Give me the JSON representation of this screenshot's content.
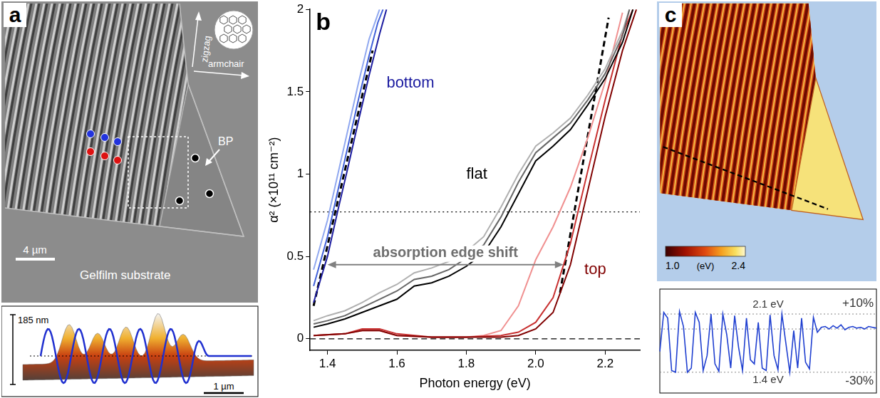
{
  "panel_a": {
    "letter": "a",
    "zigzag_label": "zigzag",
    "armchair_label": "armchair",
    "sample_label": "BP",
    "substrate_label": "Gelfilm substrate",
    "scale_bar": "4 µm",
    "inset": {
      "height_bar": "185 nm",
      "scale_bar": "1 µm"
    }
  },
  "chart_data": [
    {
      "type": "line",
      "letter": "b",
      "x_label": "Photon energy (eV)",
      "y_label": "α² (×10¹¹ cm⁻²)",
      "xlim": [
        1.35,
        2.3
      ],
      "xticks": [
        1.4,
        1.6,
        1.8,
        {
          "value": 2,
          "label": "2.0"
        },
        2.2
      ],
      "ylim": [
        -0.07,
        2
      ],
      "yticks": [
        0,
        0.5,
        1,
        1.5,
        2
      ],
      "grid": false,
      "series": [
        {
          "name": "bottom",
          "color": "#1c1ca0",
          "x": [
            1.36,
            1.38,
            1.4,
            1.43,
            1.46,
            1.49,
            1.52,
            1.55,
            1.57
          ],
          "values": [
            0.22,
            0.36,
            0.5,
            0.78,
            1.05,
            1.33,
            1.6,
            1.85,
            2.0
          ]
        },
        {
          "name": "bottom",
          "color": "#4060d8",
          "x": [
            1.36,
            1.38,
            1.4,
            1.43,
            1.46,
            1.49,
            1.52,
            1.545,
            1.56
          ],
          "values": [
            0.32,
            0.47,
            0.62,
            0.9,
            1.18,
            1.46,
            1.72,
            1.92,
            2.0
          ]
        },
        {
          "name": "bottom",
          "color": "#90a8f0",
          "x": [
            1.36,
            1.38,
            1.4,
            1.43,
            1.46,
            1.49,
            1.52,
            1.55
          ],
          "values": [
            0.42,
            0.57,
            0.72,
            1.0,
            1.28,
            1.56,
            1.82,
            2.0
          ]
        },
        {
          "name": "flat",
          "color": "#000000",
          "x": [
            1.36,
            1.4,
            1.45,
            1.5,
            1.55,
            1.6,
            1.65,
            1.7,
            1.75,
            1.8,
            1.85,
            1.9,
            1.95,
            2.0,
            2.05,
            2.1,
            2.15,
            2.2,
            2.25,
            2.28
          ],
          "values": [
            0.07,
            0.09,
            0.12,
            0.16,
            0.2,
            0.24,
            0.32,
            0.34,
            0.38,
            0.44,
            0.52,
            0.68,
            0.88,
            1.08,
            1.17,
            1.27,
            1.42,
            1.58,
            1.8,
            2.0
          ]
        },
        {
          "name": "flat",
          "color": "#666666",
          "x": [
            1.36,
            1.4,
            1.45,
            1.5,
            1.55,
            1.6,
            1.65,
            1.7,
            1.75,
            1.8,
            1.85,
            1.9,
            1.95,
            2.0,
            2.05,
            2.1,
            2.15,
            2.2,
            2.25,
            2.27
          ],
          "values": [
            0.09,
            0.11,
            0.14,
            0.19,
            0.24,
            0.29,
            0.36,
            0.38,
            0.42,
            0.49,
            0.57,
            0.74,
            0.95,
            1.13,
            1.22,
            1.31,
            1.45,
            1.61,
            1.84,
            2.0
          ]
        },
        {
          "name": "flat",
          "color": "#b0b0b0",
          "x": [
            1.36,
            1.4,
            1.45,
            1.5,
            1.55,
            1.6,
            1.65,
            1.7,
            1.75,
            1.8,
            1.85,
            1.9,
            1.95,
            2.0,
            2.05,
            2.1,
            2.15,
            2.2,
            2.25,
            2.27
          ],
          "values": [
            0.11,
            0.14,
            0.17,
            0.22,
            0.28,
            0.33,
            0.4,
            0.43,
            0.47,
            0.53,
            0.62,
            0.8,
            1.0,
            1.17,
            1.25,
            1.34,
            1.48,
            1.64,
            1.87,
            2.0
          ]
        },
        {
          "name": "top",
          "color": "#800000",
          "x": [
            1.36,
            1.45,
            1.5,
            1.55,
            1.6,
            1.7,
            1.8,
            1.9,
            1.95,
            2.0,
            2.05,
            2.1,
            2.15,
            2.2,
            2.25,
            2.29
          ],
          "values": [
            0.02,
            0.03,
            0.05,
            0.05,
            0.02,
            0.01,
            0.01,
            0.01,
            0.02,
            0.06,
            0.16,
            0.45,
            0.9,
            1.35,
            1.75,
            2.0
          ]
        },
        {
          "name": "top",
          "color": "#c83030",
          "x": [
            1.36,
            1.45,
            1.5,
            1.55,
            1.6,
            1.7,
            1.8,
            1.9,
            1.95,
            2.0,
            2.05,
            2.1,
            2.15,
            2.2,
            2.25,
            2.28
          ],
          "values": [
            0.02,
            0.03,
            0.06,
            0.06,
            0.03,
            0.01,
            0.01,
            0.02,
            0.04,
            0.1,
            0.25,
            0.58,
            1.02,
            1.45,
            1.85,
            2.0
          ]
        },
        {
          "name": "top",
          "color": "#f09090",
          "x": [
            1.36,
            1.45,
            1.5,
            1.55,
            1.6,
            1.7,
            1.8,
            1.85,
            1.9,
            1.95,
            2.0,
            2.05,
            2.1,
            2.15,
            2.2,
            2.25
          ],
          "values": [
            0.02,
            0.03,
            0.05,
            0.05,
            0.02,
            0.01,
            0.01,
            0.02,
            0.05,
            0.2,
            0.48,
            0.68,
            0.92,
            1.22,
            1.56,
            1.98
          ]
        },
        {
          "color": "#000000",
          "line_style": "dashed",
          "x": [
            1.36,
            1.53
          ],
          "values": [
            0.2,
            1.75
          ]
        },
        {
          "color": "#000000",
          "line_style": "dashed",
          "x": [
            2.07,
            2.21
          ],
          "values": [
            0.28,
            1.95
          ]
        }
      ],
      "reference_lines": [
        {
          "value": 0,
          "line_style": "dashed"
        },
        {
          "value": 0.77,
          "line_style": "dotted"
        }
      ],
      "annotations": [
        {
          "text": "absorption edge shift",
          "x": [
            1.4,
            2.08
          ],
          "y": 0.45
        }
      ]
    },
    {
      "type": "line",
      "categories": [
        null,
        null,
        null,
        null,
        null,
        null,
        null,
        null,
        null,
        null,
        null,
        null,
        null,
        null,
        null,
        null,
        null,
        null,
        null,
        null,
        null,
        null,
        null,
        null,
        null,
        null,
        null,
        null,
        null,
        null,
        null,
        null,
        null,
        null,
        null,
        null,
        null,
        null,
        null,
        null,
        null,
        null,
        null,
        null,
        null,
        null,
        null,
        null,
        null,
        null,
        null,
        null,
        null,
        null,
        null,
        null
      ],
      "values": [
        1.65,
        2.12,
        2.05,
        1.42,
        1.4,
        2.13,
        1.95,
        1.4,
        1.45,
        2.12,
        2.0,
        1.42,
        1.6,
        2.1,
        1.5,
        1.41,
        2.1,
        1.85,
        1.45,
        2.08,
        1.7,
        1.42,
        2.05,
        1.55,
        1.5,
        2.0,
        1.45,
        1.42,
        2.09,
        1.6,
        1.43,
        2.1,
        1.75,
        1.4,
        1.9,
        1.45,
        2.05,
        1.52,
        1.44,
        2.06,
        1.88,
        1.94,
        1.95,
        1.92,
        1.96,
        1.93,
        1.97,
        1.91,
        1.94,
        1.95,
        1.93,
        1.94,
        1.92,
        1.95,
        1.94,
        1.93
      ],
      "color": "#1f3fd0",
      "ylim": [
        1.15,
        2.4
      ],
      "tick_labels": false,
      "grid": false,
      "reference_lines": [
        {
          "value": 2.1,
          "label": "2.1 eV",
          "side_label": "+10%"
        },
        {
          "value": 1.92
        },
        {
          "value": 1.4,
          "label": "1.4 eV",
          "side_label": "-30%"
        }
      ]
    }
  ],
  "panel_c": {
    "letter": "c",
    "colorbar": {
      "range": [
        1,
        2.4
      ],
      "ticks": [
        {
          "value": 1,
          "label": "1.0"
        },
        2.4
      ],
      "unit": "(eV)"
    }
  }
}
